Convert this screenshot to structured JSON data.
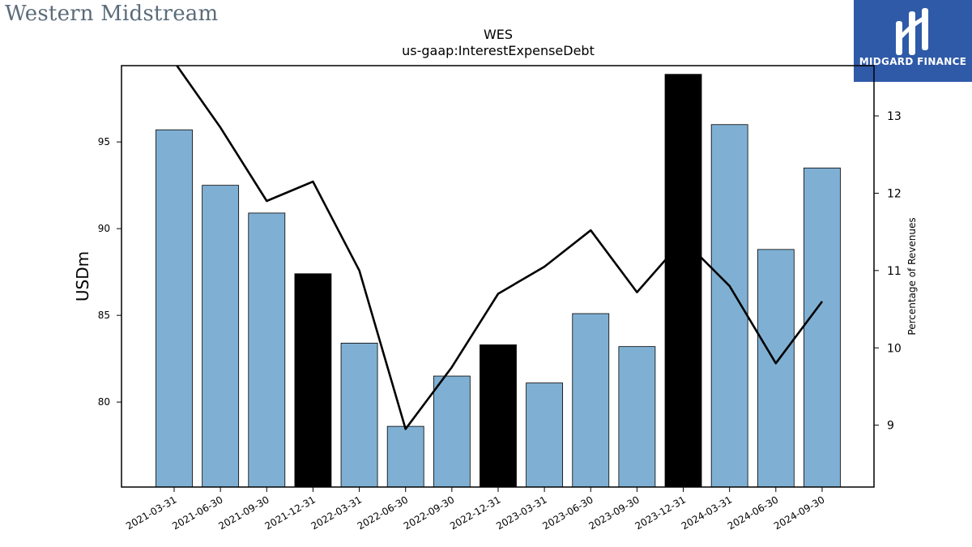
{
  "branding": {
    "company_logo_text": "Western Midstream",
    "company_logo_color": "#5b6c7a",
    "badge_name": "MIDGARD FINANCE",
    "badge_color": "#2f5aa8"
  },
  "chart_data": {
    "type": "bar",
    "title": "WES",
    "subtitle": "us-gaap:InterestExpenseDebt",
    "ylabel": "USDm",
    "y2label": "Percentage of Revenues",
    "categories": [
      "2021-03-31",
      "2021-06-30",
      "2021-09-30",
      "2021-12-31",
      "2022-03-31",
      "2022-06-30",
      "2022-09-30",
      "2022-12-31",
      "2023-03-31",
      "2023-06-30",
      "2023-09-30",
      "2023-12-31",
      "2024-03-31",
      "2024-06-30",
      "2024-09-30"
    ],
    "series": [
      {
        "values": [
          95.7,
          92.5,
          90.9,
          87.4,
          83.4,
          78.6,
          81.5,
          83.3,
          81.1,
          85.1,
          83.2,
          98.9,
          96.0,
          88.8,
          93.5
        ],
        "bar_colors": [
          "#7fb0d3",
          "#7fb0d3",
          "#7fb0d3",
          "#000000",
          "#7fb0d3",
          "#7fb0d3",
          "#7fb0d3",
          "#000000",
          "#7fb0d3",
          "#7fb0d3",
          "#7fb0d3",
          "#000000",
          "#7fb0d3",
          "#7fb0d3",
          "#7fb0d3"
        ],
        "axis": "left"
      },
      {
        "type": "line",
        "values": [
          13.7,
          12.85,
          11.9,
          12.15,
          11.0,
          8.95,
          9.75,
          10.7,
          11.05,
          11.52,
          10.72,
          11.4,
          10.8,
          9.8,
          10.6
        ],
        "color": "#000000",
        "axis": "right"
      }
    ],
    "ylim": [
      75.1,
      99.4
    ],
    "y2lim": [
      8.2,
      13.65
    ],
    "yticks": [
      80,
      85,
      90,
      95
    ],
    "y2ticks": [
      9,
      10,
      11,
      12,
      13
    ],
    "grid": false,
    "legend": "none"
  }
}
